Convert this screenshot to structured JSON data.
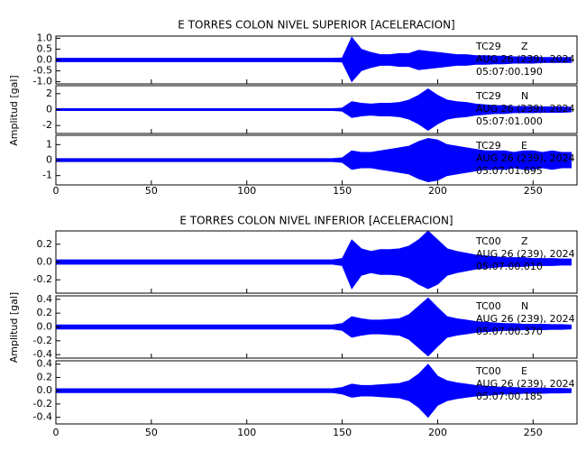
{
  "chart_data": [
    {
      "type": "line",
      "title": "E TORRES COLON NIVEL SUPERIOR [ACELERACION]",
      "ylabel": "Amplitud [gal]",
      "color": "#0000ff",
      "xlim": [
        0,
        273
      ],
      "xticks": [
        0,
        50,
        100,
        150,
        200,
        250
      ],
      "x": [
        0,
        5,
        10,
        15,
        20,
        25,
        30,
        35,
        40,
        45,
        50,
        55,
        60,
        65,
        70,
        75,
        80,
        85,
        90,
        95,
        100,
        105,
        110,
        115,
        120,
        125,
        130,
        135,
        140,
        145,
        150,
        155,
        160,
        165,
        170,
        175,
        180,
        185,
        190,
        195,
        200,
        205,
        210,
        215,
        220,
        225,
        230,
        235,
        240,
        245,
        250,
        255,
        260,
        265,
        270
      ],
      "panels": [
        {
          "station": "TC29",
          "component": "Z",
          "date": "AUG 26 (239), 2024",
          "time": "05:07:00.190",
          "ylim": [
            -1.1,
            1.1
          ],
          "yticks": [
            {
              "value": 1,
              "label": "1.0"
            },
            0.5,
            {
              "value": 0,
              "label": "0.0"
            },
            -0.5,
            {
              "value": -1,
              "label": "-1.0"
            }
          ],
          "upper": [
            0.08,
            0.08,
            0.08,
            0.08,
            0.08,
            0.08,
            0.08,
            0.08,
            0.08,
            0.08,
            0.08,
            0.08,
            0.08,
            0.08,
            0.08,
            0.08,
            0.08,
            0.08,
            0.08,
            0.08,
            0.08,
            0.08,
            0.08,
            0.08,
            0.08,
            0.08,
            0.08,
            0.08,
            0.08,
            0.08,
            0.1,
            1.05,
            0.5,
            0.35,
            0.25,
            0.25,
            0.3,
            0.3,
            0.45,
            0.4,
            0.35,
            0.3,
            0.25,
            0.25,
            0.2,
            0.2,
            0.18,
            0.18,
            0.15,
            0.15,
            0.15,
            0.12,
            0.12,
            0.12,
            0.12
          ],
          "lower": [
            -0.08,
            -0.08,
            -0.08,
            -0.08,
            -0.08,
            -0.08,
            -0.08,
            -0.08,
            -0.08,
            -0.08,
            -0.08,
            -0.08,
            -0.08,
            -0.08,
            -0.08,
            -0.08,
            -0.08,
            -0.08,
            -0.08,
            -0.08,
            -0.08,
            -0.08,
            -0.08,
            -0.08,
            -0.08,
            -0.08,
            -0.08,
            -0.08,
            -0.08,
            -0.08,
            -0.1,
            -1.0,
            -0.5,
            -0.35,
            -0.25,
            -0.25,
            -0.3,
            -0.3,
            -0.45,
            -0.4,
            -0.35,
            -0.3,
            -0.25,
            -0.25,
            -0.2,
            -0.2,
            -0.18,
            -0.18,
            -0.15,
            -0.15,
            -0.15,
            -0.12,
            -0.12,
            -0.12,
            -0.12
          ]
        },
        {
          "station": "TC29",
          "component": "N",
          "date": "AUG 26 (239), 2024",
          "time": "05:07:01.000",
          "ylim": [
            -3,
            3
          ],
          "yticks": [
            2,
            0,
            -2
          ],
          "upper": [
            0.12,
            0.12,
            0.12,
            0.12,
            0.12,
            0.12,
            0.12,
            0.12,
            0.12,
            0.12,
            0.12,
            0.12,
            0.12,
            0.12,
            0.12,
            0.12,
            0.12,
            0.12,
            0.12,
            0.12,
            0.12,
            0.12,
            0.12,
            0.12,
            0.12,
            0.12,
            0.12,
            0.12,
            0.12,
            0.12,
            0.2,
            1.0,
            0.8,
            0.7,
            0.8,
            0.8,
            0.9,
            1.2,
            1.8,
            2.6,
            1.8,
            1.2,
            1.0,
            0.9,
            0.7,
            0.6,
            0.5,
            0.5,
            0.4,
            0.4,
            0.4,
            0.35,
            0.35,
            0.35,
            0.3
          ],
          "lower": [
            -0.12,
            -0.12,
            -0.12,
            -0.12,
            -0.12,
            -0.12,
            -0.12,
            -0.12,
            -0.12,
            -0.12,
            -0.12,
            -0.12,
            -0.12,
            -0.12,
            -0.12,
            -0.12,
            -0.12,
            -0.12,
            -0.12,
            -0.12,
            -0.12,
            -0.12,
            -0.12,
            -0.12,
            -0.12,
            -0.12,
            -0.12,
            -0.12,
            -0.12,
            -0.12,
            -0.2,
            -1.0,
            -0.8,
            -0.7,
            -0.8,
            -0.8,
            -0.9,
            -1.2,
            -1.8,
            -2.6,
            -1.8,
            -1.2,
            -1.0,
            -0.9,
            -0.7,
            -0.6,
            -0.5,
            -0.5,
            -0.4,
            -0.4,
            -0.4,
            -0.35,
            -0.35,
            -0.35,
            -0.3
          ]
        },
        {
          "station": "TC29",
          "component": "E",
          "date": "AUG 26 (239), 2024",
          "time": "05:07:01.695",
          "ylim": [
            -1.6,
            1.6
          ],
          "yticks": [
            1,
            0,
            -1
          ],
          "upper": [
            0.1,
            0.1,
            0.1,
            0.1,
            0.1,
            0.1,
            0.1,
            0.1,
            0.1,
            0.1,
            0.1,
            0.1,
            0.1,
            0.1,
            0.1,
            0.1,
            0.1,
            0.1,
            0.1,
            0.1,
            0.1,
            0.1,
            0.1,
            0.1,
            0.1,
            0.1,
            0.1,
            0.1,
            0.1,
            0.1,
            0.15,
            0.6,
            0.5,
            0.5,
            0.6,
            0.7,
            0.8,
            0.9,
            1.2,
            1.4,
            1.3,
            1.0,
            0.9,
            0.8,
            0.7,
            0.6,
            0.6,
            0.6,
            0.5,
            0.6,
            0.6,
            0.5,
            0.6,
            0.5,
            0.5
          ],
          "lower": [
            -0.1,
            -0.1,
            -0.1,
            -0.1,
            -0.1,
            -0.1,
            -0.1,
            -0.1,
            -0.1,
            -0.1,
            -0.1,
            -0.1,
            -0.1,
            -0.1,
            -0.1,
            -0.1,
            -0.1,
            -0.1,
            -0.1,
            -0.1,
            -0.1,
            -0.1,
            -0.1,
            -0.1,
            -0.1,
            -0.1,
            -0.1,
            -0.1,
            -0.1,
            -0.1,
            -0.15,
            -0.6,
            -0.5,
            -0.5,
            -0.6,
            -0.7,
            -0.8,
            -0.9,
            -1.2,
            -1.4,
            -1.3,
            -1.0,
            -0.9,
            -0.8,
            -0.7,
            -0.6,
            -0.6,
            -0.6,
            -0.5,
            -0.6,
            -0.6,
            -0.5,
            -0.6,
            -0.5,
            -0.5
          ]
        }
      ]
    },
    {
      "type": "line",
      "title": "E TORRES COLON NIVEL INFERIOR [ACELERACION]",
      "ylabel": "Amplitud [gal]",
      "color": "#0000ff",
      "xlim": [
        0,
        273
      ],
      "xticks": [
        0,
        50,
        100,
        150,
        200,
        250
      ],
      "x": [
        0,
        5,
        10,
        15,
        20,
        25,
        30,
        35,
        40,
        45,
        50,
        55,
        60,
        65,
        70,
        75,
        80,
        85,
        90,
        95,
        100,
        105,
        110,
        115,
        120,
        125,
        130,
        135,
        140,
        145,
        150,
        155,
        160,
        165,
        170,
        175,
        180,
        185,
        190,
        195,
        200,
        205,
        210,
        215,
        220,
        225,
        230,
        235,
        240,
        245,
        250,
        255,
        260,
        265,
        270
      ],
      "panels": [
        {
          "station": "TC00",
          "component": "Z",
          "date": "AUG 26 (239), 2024",
          "time": "05:07:00.010",
          "ylim": [
            -0.35,
            0.35
          ],
          "yticks": [
            0.2,
            {
              "value": 0,
              "label": "0.0"
            },
            -0.2
          ],
          "upper": [
            0.025,
            0.025,
            0.025,
            0.025,
            0.025,
            0.025,
            0.025,
            0.025,
            0.025,
            0.025,
            0.025,
            0.025,
            0.025,
            0.025,
            0.025,
            0.025,
            0.025,
            0.025,
            0.025,
            0.025,
            0.025,
            0.025,
            0.025,
            0.025,
            0.025,
            0.025,
            0.025,
            0.025,
            0.025,
            0.025,
            0.04,
            0.25,
            0.15,
            0.12,
            0.14,
            0.14,
            0.15,
            0.18,
            0.25,
            0.35,
            0.25,
            0.15,
            0.12,
            0.1,
            0.08,
            0.07,
            0.06,
            0.05,
            0.05,
            0.05,
            0.04,
            0.04,
            0.04,
            0.035,
            0.035
          ],
          "lower": [
            -0.025,
            -0.025,
            -0.025,
            -0.025,
            -0.025,
            -0.025,
            -0.025,
            -0.025,
            -0.025,
            -0.025,
            -0.025,
            -0.025,
            -0.025,
            -0.025,
            -0.025,
            -0.025,
            -0.025,
            -0.025,
            -0.025,
            -0.025,
            -0.025,
            -0.025,
            -0.025,
            -0.025,
            -0.025,
            -0.025,
            -0.025,
            -0.025,
            -0.025,
            -0.025,
            -0.04,
            -0.3,
            -0.15,
            -0.12,
            -0.14,
            -0.14,
            -0.15,
            -0.18,
            -0.25,
            -0.3,
            -0.25,
            -0.15,
            -0.12,
            -0.1,
            -0.08,
            -0.07,
            -0.06,
            -0.05,
            -0.05,
            -0.05,
            -0.04,
            -0.04,
            -0.04,
            -0.035,
            -0.035
          ]
        },
        {
          "station": "TC00",
          "component": "N",
          "date": "AUG 26 (239), 2024",
          "time": "05:07:00.370",
          "ylim": [
            -0.45,
            0.45
          ],
          "yticks": [
            0.4,
            0.2,
            {
              "value": 0,
              "label": "0.0"
            },
            -0.2,
            -0.4
          ],
          "upper": [
            0.03,
            0.03,
            0.03,
            0.03,
            0.03,
            0.03,
            0.03,
            0.03,
            0.03,
            0.03,
            0.03,
            0.03,
            0.03,
            0.03,
            0.03,
            0.03,
            0.03,
            0.03,
            0.03,
            0.03,
            0.03,
            0.03,
            0.03,
            0.03,
            0.03,
            0.03,
            0.03,
            0.03,
            0.03,
            0.03,
            0.05,
            0.15,
            0.12,
            0.1,
            0.1,
            0.11,
            0.12,
            0.18,
            0.3,
            0.42,
            0.28,
            0.15,
            0.12,
            0.1,
            0.08,
            0.07,
            0.06,
            0.05,
            0.05,
            0.04,
            0.04,
            0.04,
            0.035,
            0.035,
            0.03
          ],
          "lower": [
            -0.03,
            -0.03,
            -0.03,
            -0.03,
            -0.03,
            -0.03,
            -0.03,
            -0.03,
            -0.03,
            -0.03,
            -0.03,
            -0.03,
            -0.03,
            -0.03,
            -0.03,
            -0.03,
            -0.03,
            -0.03,
            -0.03,
            -0.03,
            -0.03,
            -0.03,
            -0.03,
            -0.03,
            -0.03,
            -0.03,
            -0.03,
            -0.03,
            -0.03,
            -0.03,
            -0.05,
            -0.15,
            -0.12,
            -0.1,
            -0.1,
            -0.11,
            -0.12,
            -0.18,
            -0.3,
            -0.42,
            -0.28,
            -0.15,
            -0.12,
            -0.1,
            -0.08,
            -0.07,
            -0.06,
            -0.05,
            -0.05,
            -0.04,
            -0.04,
            -0.04,
            -0.035,
            -0.035,
            -0.03
          ]
        },
        {
          "station": "TC00",
          "component": "E",
          "date": "AUG 26 (239), 2024",
          "time": "05:07:00.185",
          "ylim": [
            -0.5,
            0.45
          ],
          "yticks": [
            0.4,
            0.2,
            {
              "value": 0,
              "label": "0.0"
            },
            -0.2,
            -0.4
          ],
          "upper": [
            0.03,
            0.03,
            0.03,
            0.03,
            0.03,
            0.03,
            0.03,
            0.03,
            0.03,
            0.03,
            0.03,
            0.03,
            0.03,
            0.03,
            0.03,
            0.03,
            0.03,
            0.03,
            0.03,
            0.03,
            0.03,
            0.03,
            0.03,
            0.03,
            0.03,
            0.03,
            0.03,
            0.03,
            0.03,
            0.03,
            0.05,
            0.1,
            0.08,
            0.08,
            0.09,
            0.1,
            0.11,
            0.15,
            0.25,
            0.4,
            0.22,
            0.15,
            0.12,
            0.1,
            0.08,
            0.07,
            0.06,
            0.05,
            0.05,
            0.04,
            0.04,
            0.04,
            0.035,
            0.035,
            0.03
          ],
          "lower": [
            -0.03,
            -0.03,
            -0.03,
            -0.03,
            -0.03,
            -0.03,
            -0.03,
            -0.03,
            -0.03,
            -0.03,
            -0.03,
            -0.03,
            -0.03,
            -0.03,
            -0.03,
            -0.03,
            -0.03,
            -0.03,
            -0.03,
            -0.03,
            -0.03,
            -0.03,
            -0.03,
            -0.03,
            -0.03,
            -0.03,
            -0.03,
            -0.03,
            -0.03,
            -0.03,
            -0.05,
            -0.1,
            -0.08,
            -0.08,
            -0.09,
            -0.1,
            -0.11,
            -0.15,
            -0.25,
            -0.4,
            -0.22,
            -0.15,
            -0.12,
            -0.1,
            -0.08,
            -0.07,
            -0.06,
            -0.05,
            -0.05,
            -0.04,
            -0.04,
            -0.04,
            -0.035,
            -0.035,
            -0.03
          ]
        }
      ]
    }
  ]
}
